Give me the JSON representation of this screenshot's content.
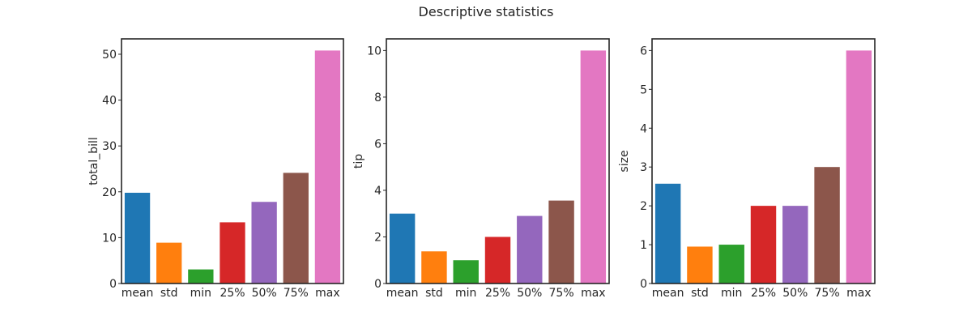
{
  "figure": {
    "title": "Descriptive statistics"
  },
  "colors": [
    "#1f77b4",
    "#ff7f0e",
    "#2ca02c",
    "#d62728",
    "#9467bd",
    "#8c564b",
    "#e377c2"
  ],
  "chart_data": [
    {
      "type": "bar",
      "title": "",
      "xlabel": "",
      "ylabel": "total_bill",
      "categories": [
        "mean",
        "std",
        "min",
        "25%",
        "50%",
        "75%",
        "max"
      ],
      "values": [
        19.79,
        8.9,
        3.07,
        13.35,
        17.8,
        24.13,
        50.81
      ],
      "ylim": [
        0,
        53.35
      ],
      "yticks": [
        0,
        10,
        20,
        30,
        40,
        50
      ],
      "grid": false
    },
    {
      "type": "bar",
      "title": "",
      "xlabel": "",
      "ylabel": "tip",
      "categories": [
        "mean",
        "std",
        "min",
        "25%",
        "50%",
        "75%",
        "max"
      ],
      "values": [
        3.0,
        1.38,
        1.0,
        2.0,
        2.9,
        3.56,
        10.0
      ],
      "ylim": [
        0,
        10.5
      ],
      "yticks": [
        0,
        2,
        4,
        6,
        8,
        10
      ],
      "grid": false
    },
    {
      "type": "bar",
      "title": "",
      "xlabel": "",
      "ylabel": "size",
      "categories": [
        "mean",
        "std",
        "min",
        "25%",
        "50%",
        "75%",
        "max"
      ],
      "values": [
        2.57,
        0.95,
        1.0,
        2.0,
        2.0,
        3.0,
        6.0
      ],
      "ylim": [
        0,
        6.3
      ],
      "yticks": [
        0,
        1,
        2,
        3,
        4,
        5,
        6
      ],
      "grid": false
    }
  ]
}
